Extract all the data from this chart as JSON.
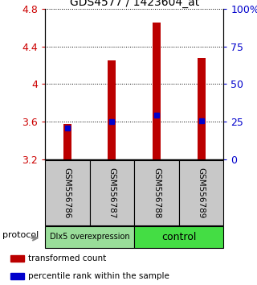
{
  "title": "GDS4577 / 1423604_at",
  "samples": [
    "GSM556786",
    "GSM556787",
    "GSM556788",
    "GSM556789"
  ],
  "bar_bottom": 3.2,
  "bar_tops": [
    3.58,
    4.25,
    4.65,
    4.28
  ],
  "percentile_values": [
    3.535,
    3.605,
    3.67,
    3.615
  ],
  "ylim_left": [
    3.2,
    4.8
  ],
  "ylim_right": [
    0,
    100
  ],
  "yticks_left": [
    3.2,
    3.6,
    4.0,
    4.4,
    4.8
  ],
  "yticks_right": [
    0,
    25,
    50,
    75,
    100
  ],
  "ytick_labels_left": [
    "3.2",
    "3.6",
    "4",
    "4.4",
    "4.8"
  ],
  "ytick_labels_right": [
    "0",
    "25",
    "50",
    "75",
    "100%"
  ],
  "dotted_lines": [
    3.6,
    4.0,
    4.4,
    4.8
  ],
  "bar_color": "#bb0000",
  "percentile_color": "#0000cc",
  "bar_width": 0.18,
  "groups": [
    {
      "label": "Dlx5 overexpression",
      "samples": [
        0,
        1
      ],
      "color": "#99dd99"
    },
    {
      "label": "control",
      "samples": [
        2,
        3
      ],
      "color": "#44dd44"
    }
  ],
  "protocol_label": "protocol",
  "legend_items": [
    {
      "color": "#bb0000",
      "label": "transformed count"
    },
    {
      "color": "#0000cc",
      "label": "percentile rank within the sample"
    }
  ],
  "background_color": "#ffffff",
  "plot_bg_color": "#ffffff",
  "label_area_color": "#c8c8c8",
  "figsize": [
    3.2,
    3.54
  ]
}
